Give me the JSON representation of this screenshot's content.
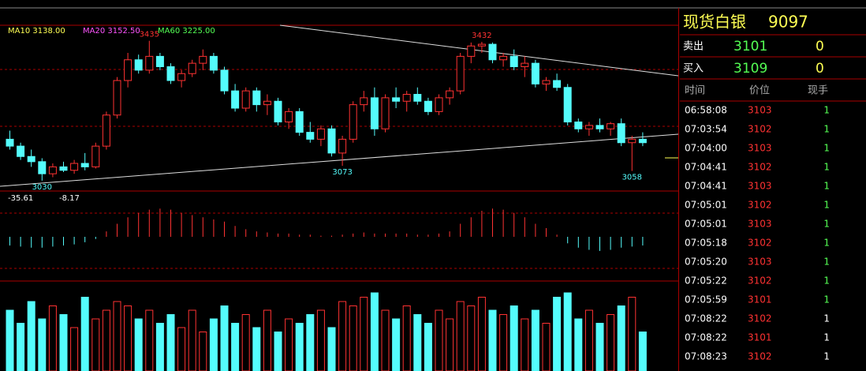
{
  "chart_data": {
    "type": "candlestick",
    "up_color": "#ff3232",
    "down_color": "#54fcfc",
    "ylim": [
      3000,
      3480
    ],
    "ma_labels": [
      {
        "text": "MA10 3138.00",
        "color": "#ffff54"
      },
      {
        "text": "MA20 3152.50",
        "color": "#ff54ff"
      },
      {
        "text": "MA60 3225.00",
        "color": "#54ff54"
      }
    ],
    "peak_labels": [
      3435,
      3432
    ],
    "trough_labels": [
      3030,
      3073,
      3058
    ],
    "ohlc": [
      [
        3150,
        3175,
        3120,
        3130
      ],
      [
        3130,
        3140,
        3090,
        3100
      ],
      [
        3100,
        3120,
        3070,
        3085
      ],
      [
        3085,
        3095,
        3030,
        3050
      ],
      [
        3050,
        3080,
        3040,
        3070
      ],
      [
        3070,
        3085,
        3055,
        3060
      ],
      [
        3060,
        3090,
        3050,
        3080
      ],
      [
        3080,
        3110,
        3060,
        3070
      ],
      [
        3070,
        3140,
        3065,
        3130
      ],
      [
        3130,
        3230,
        3120,
        3220
      ],
      [
        3220,
        3330,
        3210,
        3320
      ],
      [
        3320,
        3400,
        3300,
        3380
      ],
      [
        3380,
        3395,
        3340,
        3350
      ],
      [
        3350,
        3435,
        3340,
        3390
      ],
      [
        3390,
        3400,
        3350,
        3360
      ],
      [
        3360,
        3370,
        3310,
        3320
      ],
      [
        3320,
        3350,
        3300,
        3340
      ],
      [
        3340,
        3380,
        3330,
        3370
      ],
      [
        3370,
        3410,
        3350,
        3390
      ],
      [
        3390,
        3400,
        3340,
        3350
      ],
      [
        3350,
        3360,
        3280,
        3290
      ],
      [
        3290,
        3310,
        3230,
        3240
      ],
      [
        3240,
        3300,
        3230,
        3290
      ],
      [
        3290,
        3300,
        3230,
        3250
      ],
      [
        3250,
        3280,
        3220,
        3260
      ],
      [
        3260,
        3270,
        3190,
        3200
      ],
      [
        3200,
        3240,
        3180,
        3230
      ],
      [
        3230,
        3240,
        3160,
        3170
      ],
      [
        3170,
        3200,
        3140,
        3150
      ],
      [
        3150,
        3190,
        3130,
        3180
      ],
      [
        3180,
        3190,
        3100,
        3110
      ],
      [
        3110,
        3160,
        3073,
        3150
      ],
      [
        3150,
        3260,
        3140,
        3250
      ],
      [
        3250,
        3290,
        3230,
        3270
      ],
      [
        3270,
        3300,
        3160,
        3180
      ],
      [
        3180,
        3280,
        3170,
        3270
      ],
      [
        3270,
        3300,
        3240,
        3260
      ],
      [
        3260,
        3290,
        3230,
        3280
      ],
      [
        3280,
        3300,
        3250,
        3260
      ],
      [
        3260,
        3270,
        3220,
        3230
      ],
      [
        3230,
        3280,
        3220,
        3270
      ],
      [
        3270,
        3300,
        3250,
        3290
      ],
      [
        3290,
        3400,
        3280,
        3390
      ],
      [
        3390,
        3430,
        3370,
        3420
      ],
      [
        3420,
        3432,
        3400,
        3425
      ],
      [
        3425,
        3430,
        3370,
        3380
      ],
      [
        3380,
        3400,
        3360,
        3390
      ],
      [
        3390,
        3410,
        3350,
        3360
      ],
      [
        3360,
        3390,
        3330,
        3370
      ],
      [
        3370,
        3380,
        3300,
        3310
      ],
      [
        3310,
        3330,
        3290,
        3320
      ],
      [
        3320,
        3340,
        3290,
        3300
      ],
      [
        3300,
        3310,
        3190,
        3200
      ],
      [
        3200,
        3210,
        3170,
        3180
      ],
      [
        3180,
        3200,
        3160,
        3190
      ],
      [
        3190,
        3210,
        3170,
        3180
      ],
      [
        3180,
        3200,
        3160,
        3195
      ],
      [
        3195,
        3210,
        3130,
        3140
      ],
      [
        3140,
        3160,
        3058,
        3150
      ],
      [
        3150,
        3170,
        3130,
        3140
      ]
    ],
    "macd_labels": [
      -35.61,
      -8.17
    ],
    "macd_ylim": [
      -40,
      40
    ],
    "macd": [
      -8,
      -9,
      -10,
      -10,
      -9,
      -8,
      -7,
      -5,
      -2,
      5,
      12,
      18,
      22,
      25,
      26,
      25,
      22,
      20,
      18,
      16,
      14,
      10,
      7,
      5,
      4,
      3,
      3,
      2,
      2,
      1,
      1,
      2,
      3,
      4,
      3,
      3,
      3,
      3,
      2,
      2,
      3,
      5,
      12,
      18,
      24,
      26,
      25,
      22,
      18,
      12,
      8,
      2,
      -6,
      -10,
      -12,
      -13,
      -12,
      -10,
      -9,
      -8
    ],
    "volume_ylim": [
      0,
      100
    ],
    "volume": [
      70,
      55,
      80,
      60,
      75,
      65,
      50,
      85,
      60,
      70,
      80,
      75,
      60,
      70,
      55,
      65,
      50,
      70,
      45,
      60,
      75,
      55,
      65,
      50,
      70,
      45,
      60,
      55,
      65,
      70,
      50,
      80,
      75,
      85,
      90,
      70,
      60,
      75,
      65,
      55,
      70,
      60,
      80,
      75,
      85,
      70,
      65,
      75,
      60,
      70,
      55,
      85,
      90,
      60,
      70,
      55,
      65,
      75,
      85,
      45
    ]
  },
  "quote": {
    "name": "现货白银",
    "code": "9097",
    "sell_label": "卖出",
    "sell_price": 3101,
    "sell_qty": 0,
    "buy_label": "买入",
    "buy_price": 3109,
    "buy_qty": 0,
    "headers": [
      "时间",
      "价位",
      "现手"
    ],
    "rows": [
      {
        "time": "06:58:08",
        "price": 3103,
        "volume": 1,
        "color": "#54ff54"
      },
      {
        "time": "07:03:54",
        "price": 3102,
        "volume": 1,
        "color": "#54ff54"
      },
      {
        "time": "07:04:00",
        "price": 3103,
        "volume": 1,
        "color": "#54ff54"
      },
      {
        "time": "07:04:41",
        "price": 3102,
        "volume": 1,
        "color": "#54ff54"
      },
      {
        "time": "07:04:41",
        "price": 3103,
        "volume": 1,
        "color": "#54ff54"
      },
      {
        "time": "07:05:01",
        "price": 3102,
        "volume": 1,
        "color": "#54ff54"
      },
      {
        "time": "07:05:01",
        "price": 3103,
        "volume": 1,
        "color": "#54ff54"
      },
      {
        "time": "07:05:18",
        "price": 3102,
        "volume": 1,
        "color": "#54ff54"
      },
      {
        "time": "07:05:20",
        "price": 3103,
        "volume": 1,
        "color": "#54ff54"
      },
      {
        "time": "07:05:22",
        "price": 3102,
        "volume": 1,
        "color": "#54ff54"
      },
      {
        "time": "07:05:59",
        "price": 3101,
        "volume": 1,
        "color": "#54ff54"
      },
      {
        "time": "07:08:22",
        "price": 3102,
        "volume": 1,
        "color": "#ffffff"
      },
      {
        "time": "07:08:22",
        "price": 3101,
        "volume": 1,
        "color": "#ffffff"
      },
      {
        "time": "07:08:23",
        "price": 3102,
        "volume": 1,
        "color": "#ffffff"
      }
    ]
  }
}
